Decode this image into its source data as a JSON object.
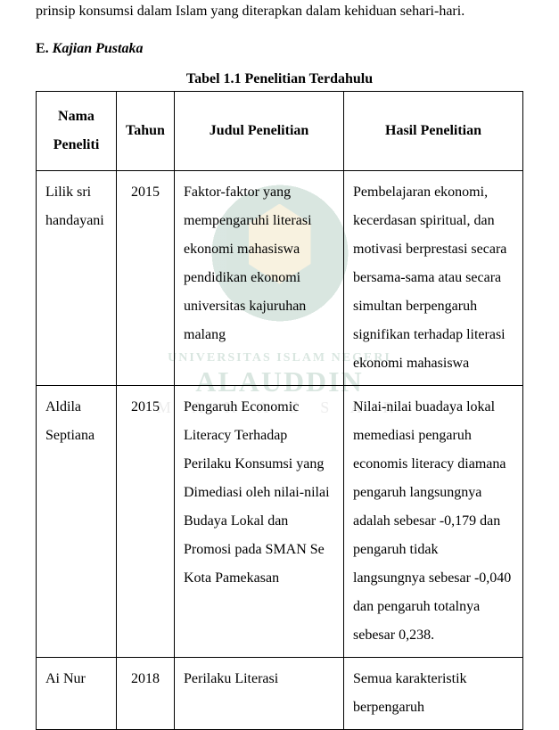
{
  "top_text": "prinsip konsumsi dalam Islam yang diterapkan dalam kehiduan sehari-hari.",
  "section": {
    "letter": "E.",
    "title": "Kajian Pustaka"
  },
  "table": {
    "caption": "Tabel 1.1 Penelitian Terdahulu",
    "headers": {
      "nama": "Nama Peneliti",
      "tahun": "Tahun",
      "judul": "Judul Penelitian",
      "hasil": "Hasil Penelitian"
    },
    "rows": [
      {
        "nama": "Lilik sri handayani",
        "tahun": "2015",
        "judul": "Faktor-faktor yang mempengaruhi literasi ekonomi mahasiswa pendidikan ekonomi universitas kajuruhan malang",
        "hasil": "Pembelajaran ekonomi, kecerdasan spiritual, dan motivasi berprestasi secara bersama-sama atau secara simultan berpengaruh signifikan terhadap literasi ekonomi mahasiswa"
      },
      {
        "nama": "Aldila Septiana",
        "tahun": "2015",
        "judul": "Pengaruh Economic Literacy Terhadap Perilaku Konsumsi yang Dimediasi oleh nilai-nilai Budaya Lokal dan Promosi pada SMAN Se Kota Pamekasan",
        "hasil": "Nilai-nilai buadaya lokal memediasi pengaruh economis literacy diamana pengaruh langsungnya adalah sebesar -0,179 dan pengaruh tidak langsungnya sebesar -0,040 dan pengaruh totalnya sebesar 0,238."
      },
      {
        "nama": "Ai Nur",
        "tahun": "2018",
        "judul": "Perilaku Literasi",
        "hasil": "Semua karakteristik berpengaruh"
      }
    ]
  },
  "watermark": {
    "line1": "UNIVERSITAS ISLAM NEGERI",
    "line2": "ALAUDDIN",
    "line3": "M A K A S S A R"
  }
}
